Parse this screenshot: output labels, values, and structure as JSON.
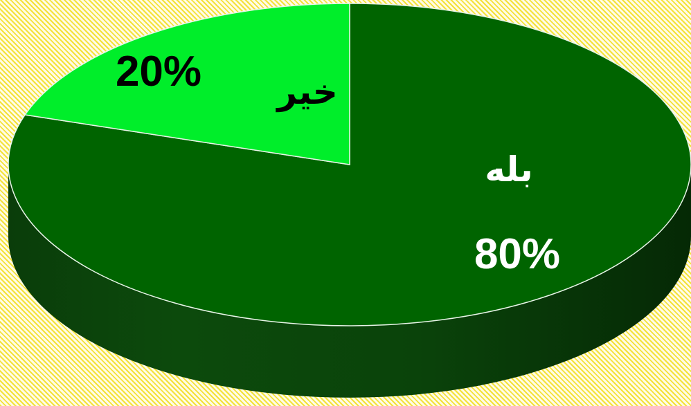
{
  "chart_data": {
    "type": "pie",
    "style": "3d",
    "categories": [
      "بله",
      "خیر"
    ],
    "values": [
      80,
      20
    ],
    "data_labels": [
      "80%",
      "20%"
    ],
    "colors": [
      "#006400",
      "#00ee2a"
    ],
    "title": "",
    "legend": "none"
  }
}
